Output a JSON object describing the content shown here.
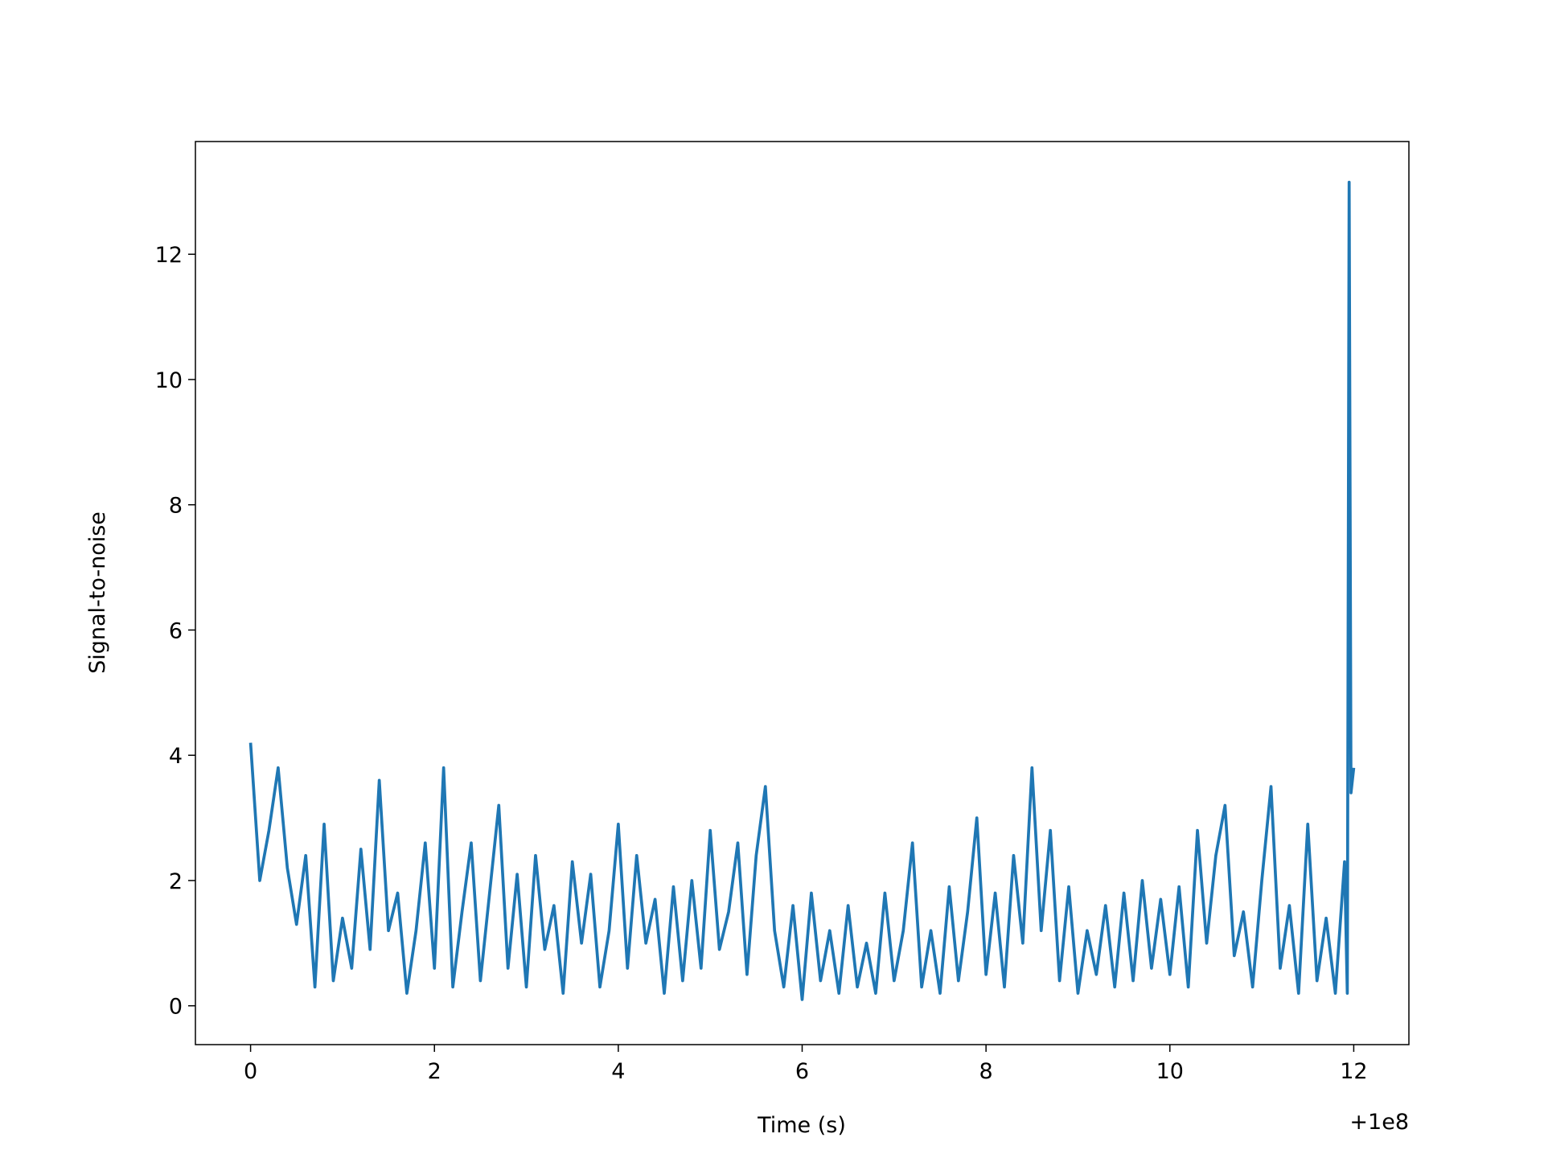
{
  "chart_data": {
    "type": "line",
    "xlabel": "Time (s)",
    "ylabel": "Signal-to-noise",
    "x_offset_label": "+1e8",
    "x": [
      0,
      0.1,
      0.2,
      0.3,
      0.4,
      0.5,
      0.6,
      0.7,
      0.8,
      0.9,
      1.0,
      1.1,
      1.2,
      1.3,
      1.4,
      1.5,
      1.6,
      1.7,
      1.8,
      1.9,
      2.0,
      2.1,
      2.2,
      2.3,
      2.4,
      2.5,
      2.6,
      2.7,
      2.8,
      2.9,
      3.0,
      3.1,
      3.2,
      3.3,
      3.4,
      3.5,
      3.6,
      3.7,
      3.8,
      3.9,
      4.0,
      4.1,
      4.2,
      4.3,
      4.4,
      4.5,
      4.6,
      4.7,
      4.8,
      4.9,
      5.0,
      5.1,
      5.2,
      5.3,
      5.4,
      5.5,
      5.6,
      5.7,
      5.8,
      5.9,
      6.0,
      6.1,
      6.2,
      6.3,
      6.4,
      6.5,
      6.6,
      6.7,
      6.8,
      6.9,
      7.0,
      7.1,
      7.2,
      7.3,
      7.4,
      7.5,
      7.6,
      7.7,
      7.8,
      7.9,
      8.0,
      8.1,
      8.2,
      8.3,
      8.4,
      8.5,
      8.6,
      8.7,
      8.8,
      8.9,
      9.0,
      9.1,
      9.2,
      9.3,
      9.4,
      9.5,
      9.6,
      9.7,
      9.8,
      9.9,
      10.0,
      10.1,
      10.2,
      10.3,
      10.4,
      10.5,
      10.6,
      10.7,
      10.8,
      10.9,
      11.0,
      11.1,
      11.2,
      11.3,
      11.4,
      11.5,
      11.6,
      11.7,
      11.8,
      11.9,
      11.93,
      11.95,
      11.97,
      12.0
    ],
    "values": [
      4.2,
      2.0,
      2.8,
      3.8,
      2.2,
      1.3,
      2.4,
      0.3,
      2.9,
      0.4,
      1.4,
      0.6,
      2.5,
      0.9,
      3.6,
      1.2,
      1.8,
      0.2,
      1.2,
      2.6,
      0.6,
      3.8,
      0.3,
      1.5,
      2.6,
      0.4,
      1.8,
      3.2,
      0.6,
      2.1,
      0.3,
      2.4,
      0.9,
      1.6,
      0.2,
      2.3,
      1.0,
      2.1,
      0.3,
      1.2,
      2.9,
      0.6,
      2.4,
      1.0,
      1.7,
      0.2,
      1.9,
      0.4,
      2.0,
      0.6,
      2.8,
      0.9,
      1.5,
      2.6,
      0.5,
      2.4,
      3.5,
      1.2,
      0.3,
      1.6,
      0.1,
      1.8,
      0.4,
      1.2,
      0.2,
      1.6,
      0.3,
      1.0,
      0.2,
      1.8,
      0.4,
      1.2,
      2.6,
      0.3,
      1.2,
      0.2,
      1.9,
      0.4,
      1.5,
      3.0,
      0.5,
      1.8,
      0.3,
      2.4,
      1.0,
      3.8,
      1.2,
      2.8,
      0.4,
      1.9,
      0.2,
      1.2,
      0.5,
      1.6,
      0.3,
      1.8,
      0.4,
      2.0,
      0.6,
      1.7,
      0.5,
      1.9,
      0.3,
      2.8,
      1.0,
      2.4,
      3.2,
      0.8,
      1.5,
      0.3,
      2.0,
      3.5,
      0.6,
      1.6,
      0.2,
      2.9,
      0.4,
      1.4,
      0.2,
      2.3,
      0.2,
      13.15,
      3.4,
      3.8
    ],
    "color": "#1f77b4",
    "xlim": [
      -0.6,
      12.6
    ],
    "ylim": [
      -0.62,
      13.8
    ],
    "xticks": [
      0,
      2,
      4,
      6,
      8,
      10,
      12
    ],
    "yticks": [
      0,
      2,
      4,
      6,
      8,
      10,
      12
    ],
    "grid": false
  }
}
